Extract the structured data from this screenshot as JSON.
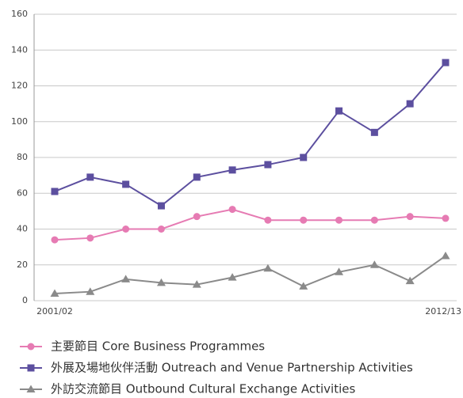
{
  "chart_data": {
    "type": "line",
    "categories": [
      "2001/02",
      null,
      null,
      null,
      null,
      null,
      null,
      null,
      null,
      null,
      null,
      "2012/13"
    ],
    "ylim": [
      0,
      160
    ],
    "yticks": [
      0,
      20,
      40,
      60,
      80,
      100,
      120,
      140,
      160
    ],
    "grid": true,
    "series": [
      {
        "name": "主要節目 Core Business Programmes",
        "color": "#e67bb3",
        "marker": "circle",
        "values": [
          34,
          35,
          40,
          40,
          47,
          51,
          45,
          45,
          45,
          45,
          47,
          46
        ]
      },
      {
        "name": "外展及場地伙伴活動 Outreach and Venue Partnership Activities",
        "color": "#5c4f9f",
        "marker": "square",
        "values": [
          61,
          69,
          65,
          53,
          69,
          73,
          76,
          80,
          106,
          94,
          110,
          133
        ]
      },
      {
        "name": "外訪交流節目 Outbound Cultural Exchange Activities",
        "color": "#8a8a8a",
        "marker": "triangle",
        "values": [
          4,
          5,
          12,
          10,
          9,
          13,
          18,
          8,
          16,
          20,
          11,
          25
        ]
      }
    ]
  }
}
